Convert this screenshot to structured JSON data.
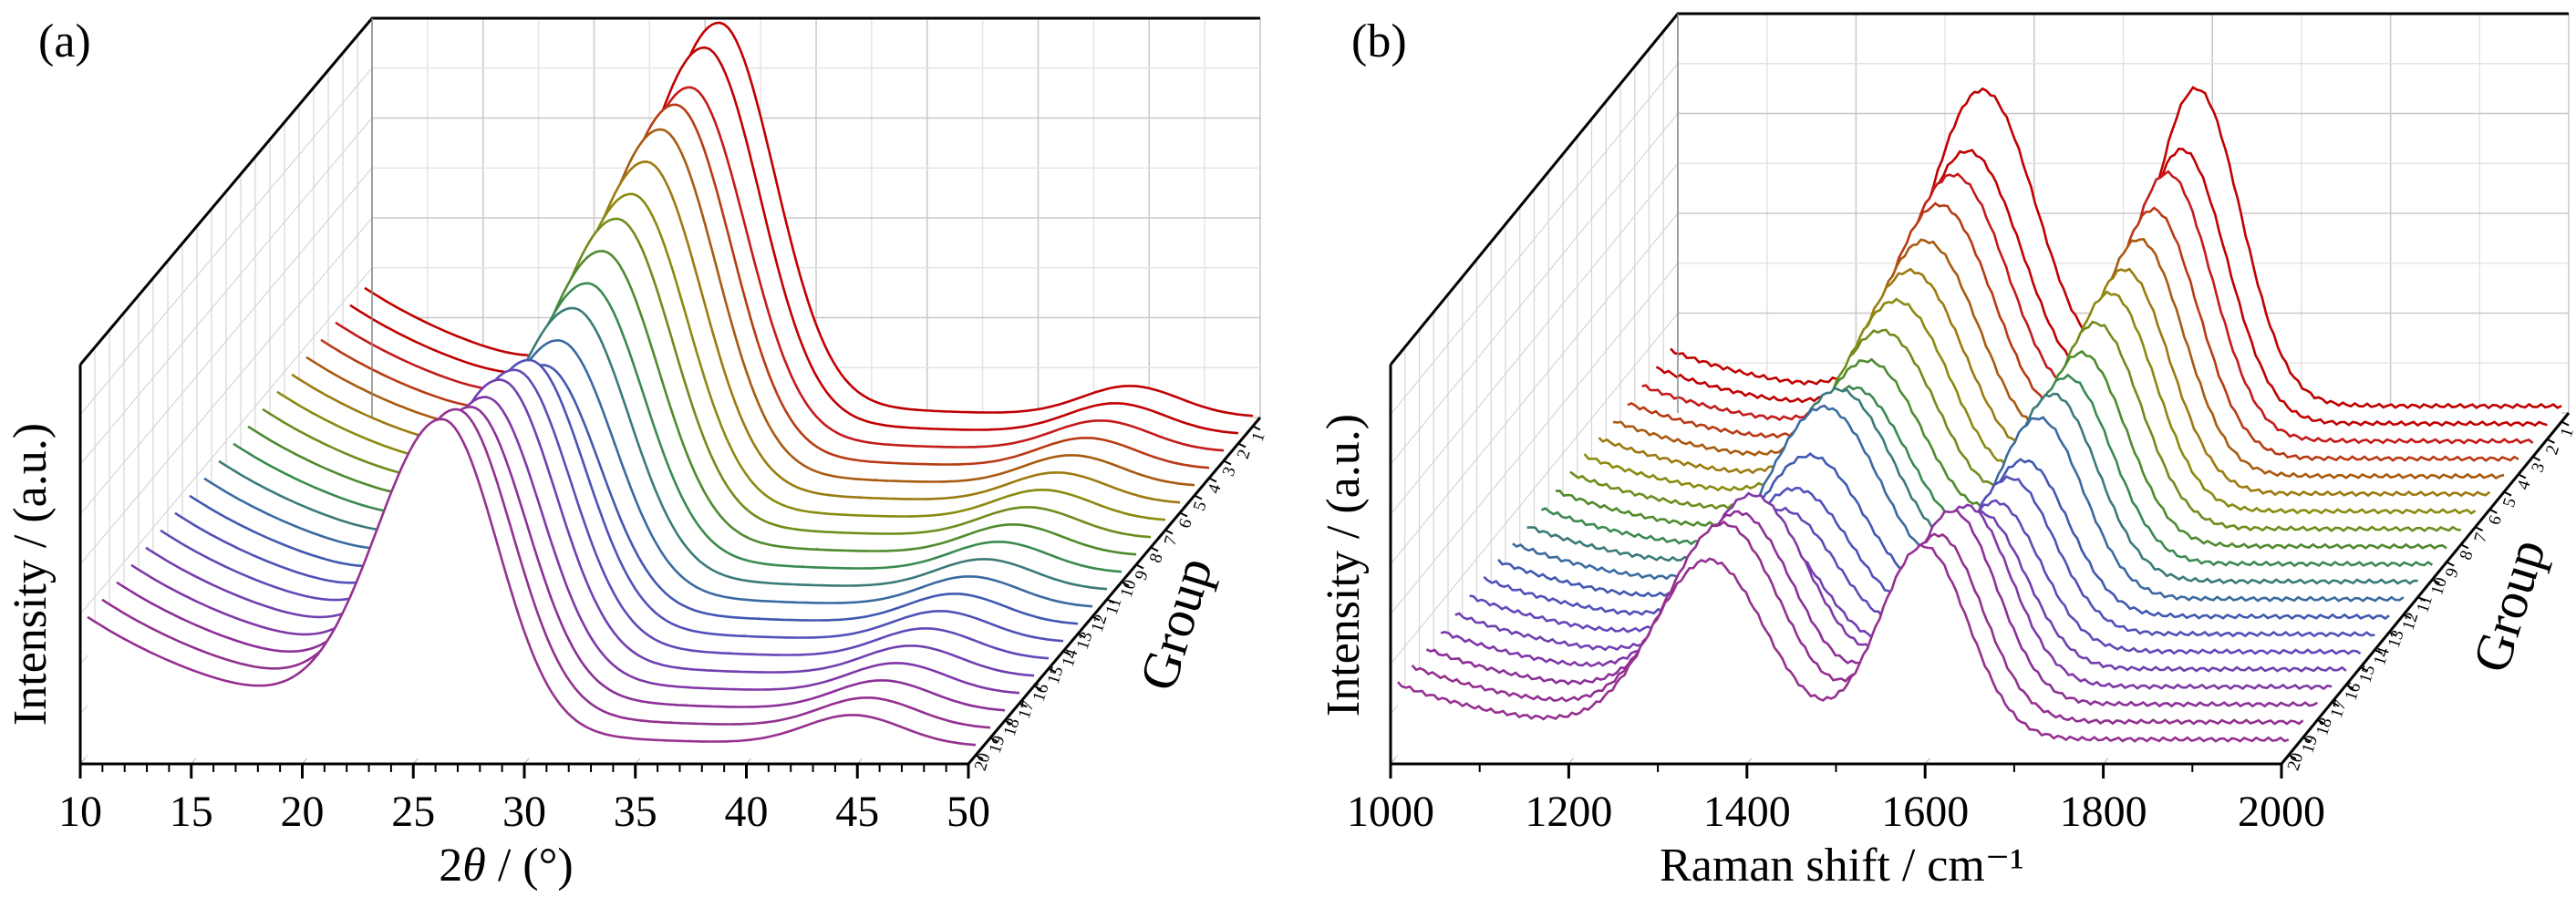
{
  "chart_data": [
    {
      "panel_label": "(a)",
      "type": "line",
      "title": "",
      "xlabel": "2θ / (°)",
      "xlabel_var": "θ",
      "xlabel_parts": [
        "2",
        "θ",
        " / (°)"
      ],
      "ylabel": "Intensity / (a.u.)",
      "zlabel": "Group",
      "xlim": [
        10,
        50
      ],
      "x_ticks": [
        10,
        15,
        20,
        25,
        30,
        35,
        40,
        45,
        50
      ],
      "x_tick_labels": [
        "10",
        "15",
        "20",
        "25",
        "30",
        "35",
        "40",
        "45",
        "50"
      ],
      "groups": [
        "1",
        "2",
        "3",
        "4",
        "5",
        "6",
        "7",
        "8",
        "9",
        "10",
        "11",
        "12",
        "13",
        "14",
        "15",
        "16",
        "17",
        "18",
        "19",
        "20"
      ],
      "grid": true,
      "view": "3d-waterfall",
      "series_colors": [
        "#c00000",
        "#c00000",
        "#c41a1a",
        "#b83a14",
        "#a85a10",
        "#9c7a10",
        "#8a8a10",
        "#6e8c1c",
        "#4f8a2e",
        "#3a8a50",
        "#3a7a78",
        "#3a6aa0",
        "#4058b0",
        "#5050b8",
        "#6448b8",
        "#7040b0",
        "#8038a8",
        "#8c3098",
        "#923090",
        "#963090"
      ],
      "peak_shape": {
        "main_peak_center_deg": 26,
        "main_peak_height": 1.0,
        "main_peak_width_deg": 2.6,
        "second_peak_center_deg": 44.5,
        "second_peak_height": 0.08,
        "baseline_at_10deg": 0.35
      },
      "series_main_peak_heights": [
        1.0,
        0.98,
        0.92,
        0.92,
        0.9,
        0.86,
        0.82,
        0.8,
        0.76,
        0.72,
        0.7,
        0.66,
        0.64,
        0.7,
        0.72,
        0.74,
        0.74,
        0.76,
        0.8,
        0.82
      ]
    },
    {
      "panel_label": "(b)",
      "type": "line",
      "title": "",
      "xlabel": "Raman shift / cm⁻¹",
      "ylabel": "Intensity / (a.u.)",
      "zlabel": "Group",
      "xlim": [
        1000,
        2000
      ],
      "x_ticks": [
        1000,
        1200,
        1400,
        1600,
        1800,
        2000
      ],
      "x_tick_labels": [
        "1000",
        "1200",
        "1400",
        "1600",
        "1800",
        "2000"
      ],
      "groups": [
        "1",
        "2",
        "3",
        "4",
        "5",
        "6",
        "7",
        "8",
        "9",
        "10",
        "11",
        "12",
        "13",
        "14",
        "15",
        "16",
        "17",
        "18",
        "19",
        "20"
      ],
      "grid": true,
      "view": "3d-waterfall",
      "series_colors": [
        "#c00000",
        "#c00000",
        "#c41a1a",
        "#b83a14",
        "#a85a10",
        "#9c7a10",
        "#8a8a10",
        "#6e8c1c",
        "#4f8a2e",
        "#3a8a50",
        "#3a7a78",
        "#3a6aa0",
        "#4058b0",
        "#5050b8",
        "#6448b8",
        "#7040b0",
        "#8038a8",
        "#8c3098",
        "#923090",
        "#963090"
      ],
      "peak_shape": {
        "D_band_center_cm": 1350,
        "D_band_width_cm": 60,
        "G_band_center_cm": 1590,
        "G_band_width_cm": 50,
        "baseline_at_1000": 0.05
      },
      "series_D_heights": [
        1.0,
        0.86,
        0.84,
        0.8,
        0.74,
        0.7,
        0.66,
        0.62,
        0.58,
        0.55,
        0.6,
        0.6,
        0.5,
        0.45,
        0.44,
        0.42,
        0.6,
        0.6,
        0.62,
        0.56
      ],
      "series_G_heights": [
        1.02,
        0.88,
        0.86,
        0.8,
        0.76,
        0.72,
        0.7,
        0.66,
        0.62,
        0.6,
        0.6,
        0.58,
        0.5,
        0.5,
        0.48,
        0.5,
        0.58,
        0.62,
        0.6,
        0.62
      ]
    }
  ]
}
